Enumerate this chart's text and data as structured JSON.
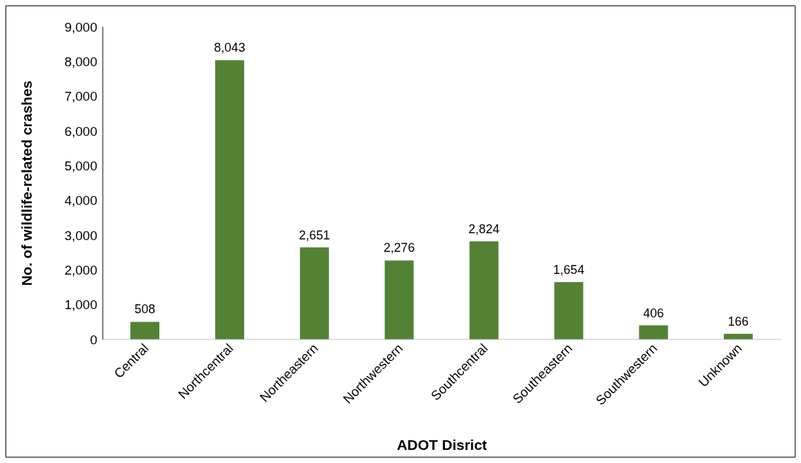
{
  "chart_data": {
    "type": "bar",
    "xlabel": "ADOT Disrict",
    "ylabel": "No. of wildlife-related crashes",
    "categories": [
      "Central",
      "Northcentral",
      "Northeastern",
      "Northwestern",
      "Southcentral",
      "Southeastern",
      "Southwestern",
      "Unknown"
    ],
    "values": [
      508,
      8043,
      2651,
      2276,
      2824,
      1654,
      406,
      166
    ],
    "color": "#548235",
    "value_labels": [
      "508",
      "8,043",
      "2,651",
      "2,276",
      "2,824",
      "1,654",
      "406",
      "166"
    ],
    "ylim": [
      0,
      9000
    ],
    "yticks": [
      0,
      {
        "value": 1000,
        "label": "1,000"
      },
      {
        "value": 2000,
        "label": "2,000"
      },
      {
        "value": 3000,
        "label": "3,000"
      },
      {
        "value": 4000,
        "label": "4,000"
      },
      {
        "value": 5000,
        "label": "5,000"
      },
      {
        "value": 6000,
        "label": "6,000"
      },
      {
        "value": 7000,
        "label": "7,000"
      },
      {
        "value": 8000,
        "label": "8,000"
      },
      {
        "value": 9000,
        "label": "9,000"
      }
    ],
    "grid": false,
    "legend": false
  }
}
